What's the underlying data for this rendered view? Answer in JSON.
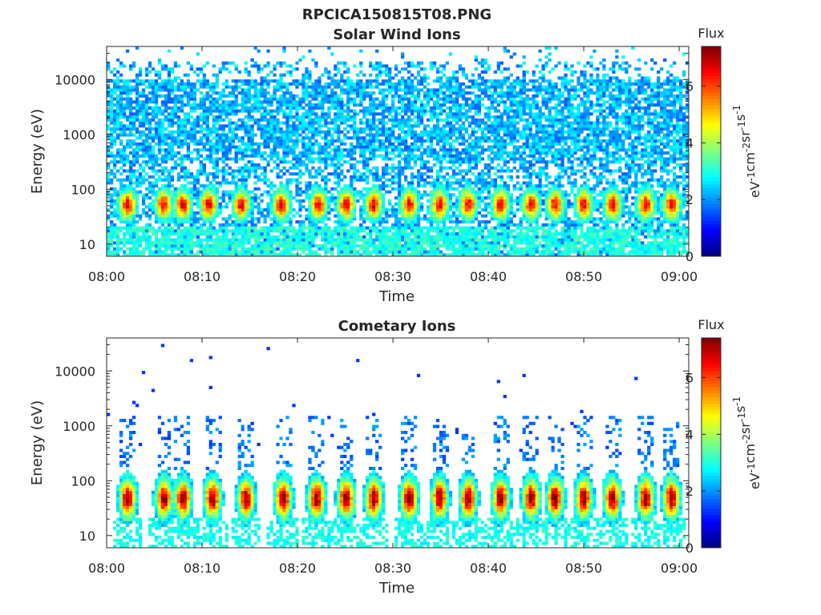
{
  "figure": {
    "title": "RPCICA150815T08.PNG"
  },
  "chart_data": [
    {
      "type": "heatmap",
      "title": "Solar Wind Ions",
      "xlabel": "Time",
      "ylabel": "Energy (eV)",
      "x_ticks": [
        "08:00",
        "08:10",
        "08:20",
        "08:30",
        "08:40",
        "08:50",
        "09:00"
      ],
      "x_range": [
        "08:00",
        "09:01"
      ],
      "y_scale": "log",
      "y_ticks": [
        10,
        100,
        1000,
        10000
      ],
      "y_tick_labels": [
        "10",
        "100",
        "1000",
        "10000"
      ],
      "y_range": [
        6,
        40000
      ],
      "colorbar": {
        "title": "Flux",
        "label": "eV-1cm-2sr-1s-1",
        "label_parts": [
          "eV",
          "-1",
          "cm",
          "-2",
          "sr",
          "-1",
          "s",
          "-1"
        ],
        "range": [
          0,
          7.4
        ],
        "ticks": [
          0,
          2,
          4,
          6
        ],
        "colormap": "jet"
      },
      "bursts_min_after_0800": [
        2.2,
        6.0,
        8.0,
        10.7,
        14.1,
        18.3,
        22.2,
        25.1,
        28.0,
        31.7,
        34.9,
        37.9,
        41.3,
        44.5,
        47.0,
        50.0,
        53.0,
        56.5,
        59.2
      ],
      "background_level": "high-energy speckle 2-3 across 300-15000 eV"
    },
    {
      "type": "heatmap",
      "title": "Cometary Ions",
      "xlabel": "Time",
      "ylabel": "Energy (eV)",
      "x_ticks": [
        "08:00",
        "08:10",
        "08:20",
        "08:30",
        "08:40",
        "08:50",
        "09:00"
      ],
      "x_range": [
        "08:00",
        "09:01"
      ],
      "y_scale": "log",
      "y_ticks": [
        10,
        100,
        1000,
        10000
      ],
      "y_tick_labels": [
        "10",
        "100",
        "1000",
        "10000"
      ],
      "y_range": [
        6,
        40000
      ],
      "colorbar": {
        "title": "Flux",
        "label": "eV-1cm-2sr-1s-1",
        "label_parts": [
          "eV",
          "-1",
          "cm",
          "-2",
          "sr",
          "-1",
          "s",
          "-1"
        ],
        "range": [
          0,
          7.4
        ],
        "ticks": [
          0,
          2,
          4,
          6
        ],
        "colormap": "jet"
      },
      "bursts_min_after_0800": [
        2.2,
        6.0,
        8.0,
        11.1,
        14.6,
        18.5,
        22.0,
        25.1,
        28.0,
        31.7,
        34.9,
        37.9,
        41.3,
        44.5,
        47.0,
        50.0,
        53.0,
        56.5,
        59.2
      ],
      "peak_energy_eV": 45
    }
  ]
}
